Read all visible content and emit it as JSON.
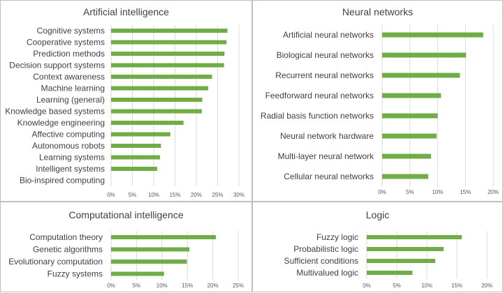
{
  "colors": {
    "bar": "#70ad47",
    "grid": "#d9d9d9",
    "text": "#404040"
  },
  "chart_data": [
    {
      "id": "ai",
      "type": "bar",
      "orientation": "horizontal",
      "title": "Artificial intelligence",
      "categories": [
        "Cognitive systems",
        "Cooperative systems",
        "Prediction methods",
        "Decision support systems",
        "Context awareness",
        "Machine learning",
        "Learning (general)",
        "Knowledge based systems",
        "Knowledge engineering",
        "Affective computing",
        "Autonomous robots",
        "Learning systems",
        "Intelligent systems",
        "Bio-inspired computing"
      ],
      "values": [
        27.3,
        27.1,
        26.6,
        26.5,
        23.7,
        22.8,
        21.4,
        21.3,
        17.0,
        13.9,
        11.7,
        11.5,
        10.8,
        0.0
      ],
      "xlim": [
        0,
        30
      ],
      "ticks": [
        0,
        5,
        10,
        15,
        20,
        25,
        30
      ],
      "tick_labels": [
        "0%",
        "5%",
        "10%",
        "15%",
        "20%",
        "25%",
        "30%"
      ],
      "grid": true
    },
    {
      "id": "nn",
      "type": "bar",
      "orientation": "horizontal",
      "title": "Neural networks",
      "categories": [
        "Artificial neural networks",
        "Biological neural networks",
        "Recurrent neural networks",
        "Feedforward neural networks",
        "Radial basis function networks",
        "Neural network hardware",
        "Multi-layer neural network",
        "Cellular neural networks"
      ],
      "values": [
        18.2,
        15.1,
        14.0,
        10.6,
        10.0,
        9.8,
        8.8,
        8.3
      ],
      "xlim": [
        0,
        20
      ],
      "ticks": [
        0,
        5,
        10,
        15,
        20
      ],
      "tick_labels": [
        "0%",
        "5%",
        "10%",
        "15%",
        "20%"
      ],
      "grid": true
    },
    {
      "id": "ci",
      "type": "bar",
      "orientation": "horizontal",
      "title": "Computational intelligence",
      "categories": [
        "Computation theory",
        "Genetic algorithms",
        "Evolutionary computation",
        "Fuzzy systems"
      ],
      "values": [
        20.6,
        15.4,
        14.9,
        10.4
      ],
      "xlim": [
        0,
        25
      ],
      "ticks": [
        0,
        5,
        10,
        15,
        20,
        25
      ],
      "tick_labels": [
        "0%",
        "5%",
        "10%",
        "15%",
        "20%",
        "25%"
      ],
      "grid": true
    },
    {
      "id": "logic",
      "type": "bar",
      "orientation": "horizontal",
      "title": "Logic",
      "categories": [
        "Fuzzy logic",
        "Probabilistic logic",
        "Sufficient conditions",
        "Multivalued logic"
      ],
      "values": [
        15.8,
        12.8,
        11.4,
        7.6
      ],
      "xlim": [
        0,
        20
      ],
      "ticks": [
        0,
        5,
        10,
        15,
        20
      ],
      "tick_labels": [
        "0%",
        "5%",
        "10%",
        "15%",
        "20%"
      ],
      "grid": true
    }
  ]
}
